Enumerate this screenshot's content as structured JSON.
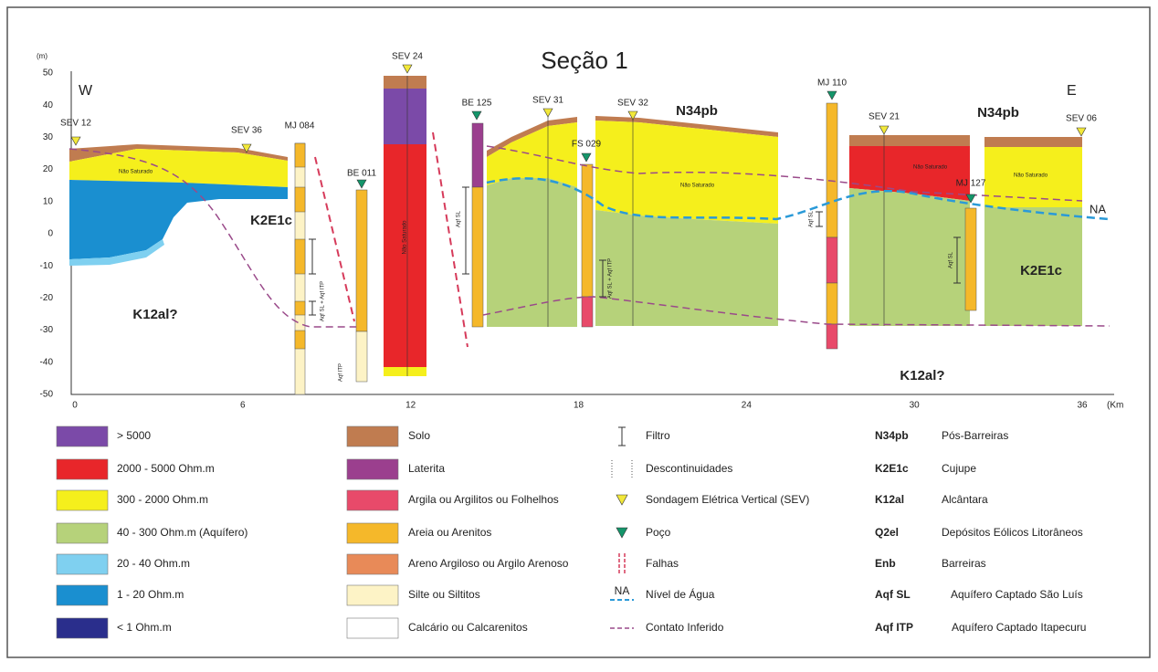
{
  "title": "Seção 1",
  "axes": {
    "y_unit": "(m)",
    "y_ticks": [
      50,
      40,
      30,
      20,
      10,
      0,
      -10,
      -20,
      -30,
      -40,
      -50
    ],
    "x_ticks": [
      0,
      6,
      12,
      18,
      24,
      30,
      36
    ],
    "x_unit": "(Km"
  },
  "directions": {
    "west": "W",
    "east": "E"
  },
  "soundings": [
    "SEV 12",
    "SEV 36",
    "SEV 24",
    "SEV 31",
    "SEV 32",
    "SEV 21",
    "SEV 06"
  ],
  "wells": [
    "MJ 084",
    "BE 011",
    "BE 125",
    "FS 029",
    "MJ 110",
    "MJ 127"
  ],
  "units": [
    "K12al?",
    "K2E1c",
    "N34pb",
    "N34pb",
    "K2E1c",
    "K12al?"
  ],
  "annotations": {
    "unsaturated": "Não Saturado",
    "water_level": "NA",
    "aqf_sl": "Aqf SL",
    "aqf_sl_itp": "Aqf SL + Aqf ITP",
    "aqf_itp": "Aqf ITP"
  },
  "legend": {
    "resistivity": [
      "> 5000",
      "2000 - 5000 Ohm.m",
      "300 - 2000 Ohm.m",
      "40 - 300 Ohm.m (Aquífero)",
      "20 - 40 Ohm.m",
      "1 - 20 Ohm.m",
      "< 1 Ohm.m"
    ],
    "lithology": [
      "Solo",
      "Laterita",
      "Argila ou Argilitos ou Folhelhos",
      "Areia ou Arenitos",
      "Areno Argiloso ou Argilo Arenoso",
      "Silte ou Siltitos",
      "Calcário ou Calcarenitos"
    ],
    "symbols": [
      "Filtro",
      "Descontinuidades",
      "Sondagem Elétrica Vertical (SEV)",
      "Poço",
      "Falhas",
      "Nível de Água",
      "Contato Inferido"
    ],
    "formations": [
      {
        "code": "N34pb",
        "name": "Pós-Barreiras"
      },
      {
        "code": "K2E1c",
        "name": "Cujupe"
      },
      {
        "code": "K12al",
        "name": "Alcântara"
      },
      {
        "code": "Q2el",
        "name": "Depósitos Eólicos Litorâneos"
      },
      {
        "code": "Enb",
        "name": "Barreiras"
      },
      {
        "code": "Aqf SL",
        "name": "Aquífero Captado São Luís"
      },
      {
        "code": "Aqf ITP",
        "name": "Aquífero Captado Itapecuru"
      }
    ]
  }
}
